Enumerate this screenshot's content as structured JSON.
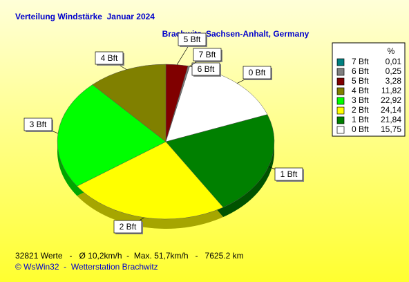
{
  "chart_data": {
    "type": "pie",
    "title": "Verteilung Windstärke  Januar 2024",
    "subtitle": "Brachwitz, Sachsen-Anhalt, Germany",
    "legend_header": "%",
    "categories": [
      "7 Bft",
      "6 Bft",
      "5 Bft",
      "4 Bft",
      "3 Bft",
      "2 Bft",
      "1 Bft",
      "0 Bft"
    ],
    "values": [
      0.01,
      0.25,
      3.28,
      11.82,
      22.92,
      24.14,
      21.84,
      15.75
    ],
    "value_labels": [
      "0,01",
      "0,25",
      "3,28",
      "11,82",
      "22,92",
      "24,14",
      "21,84",
      "15,75"
    ],
    "colors": [
      "#008080",
      "#808080",
      "#800000",
      "#808000",
      "#00ff00",
      "#ffff00",
      "#008000",
      "#ffffff"
    ],
    "footer": "32821 Werte   -   Ø 10,2km/h  -  Max. 51,7km/h   -   7625.2 km",
    "credit": "© WsWin32  -  Wetterstation Brachwitz"
  }
}
